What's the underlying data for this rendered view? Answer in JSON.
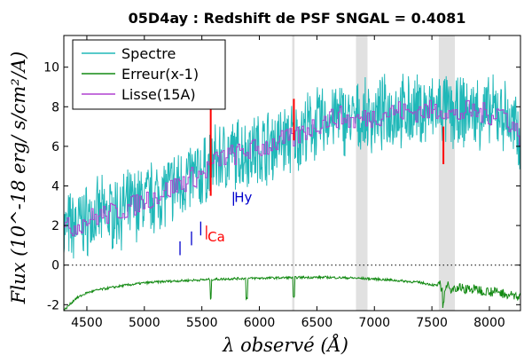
{
  "chart_data": {
    "type": "line",
    "title": "05D4ay : Redshift de PSF SNGAL = 0.4081",
    "xlabel": "λ observé (Å)",
    "ylabel": "Flux (10^-18 erg/ s/cm²/A)",
    "xlim": [
      4300,
      8270
    ],
    "ylim": [
      -2.3,
      11.6
    ],
    "xticks": [
      4500,
      5000,
      5500,
      6000,
      6500,
      7000,
      7500,
      8000
    ],
    "yticks": [
      -2,
      0,
      2,
      4,
      6,
      8,
      10
    ],
    "legend": {
      "placement": "top-left",
      "entries": [
        "Spectre",
        "Erreur(x-1)",
        "Lisse(15A)"
      ]
    },
    "colors": {
      "spectre": "#20b8b8",
      "erreur": "#138a13",
      "lisse": "#b040d0",
      "mask": "#c8c8c8",
      "sky": "#ff0000",
      "lines_blue": "#0000cc",
      "lines_red": "#ff0000"
    },
    "series": [
      {
        "name": "Spectre",
        "x": [
          4300,
          4400,
          4500,
          4600,
          4700,
          4800,
          4900,
          5000,
          5100,
          5200,
          5300,
          5400,
          5500,
          5600,
          5700,
          5800,
          5900,
          6000,
          6100,
          6200,
          6300,
          6400,
          6500,
          6600,
          6700,
          6800,
          6900,
          7000,
          7100,
          7200,
          7300,
          7400,
          7500,
          7600,
          7700,
          7800,
          7900,
          8000,
          8100,
          8200,
          8270
        ],
        "y": [
          1.8,
          2.0,
          2.3,
          2.5,
          2.6,
          2.8,
          3.0,
          3.3,
          3.5,
          3.8,
          4.1,
          4.4,
          4.6,
          5.2,
          5.5,
          5.6,
          5.8,
          5.9,
          6.1,
          6.3,
          6.4,
          6.8,
          7.1,
          7.4,
          7.5,
          7.3,
          7.4,
          7.5,
          7.7,
          7.8,
          7.7,
          7.8,
          7.8,
          7.9,
          7.5,
          7.8,
          7.7,
          7.6,
          7.8,
          7.0,
          6.5
        ],
        "noise": 1.6
      },
      {
        "name": "Erreur(x-1)",
        "x": [
          4300,
          4400,
          4500,
          4600,
          4800,
          5000,
          5200,
          5400,
          5600,
          5800,
          6000,
          6200,
          6400,
          6600,
          6800,
          7000,
          7200,
          7400,
          7600,
          7800,
          8000,
          8270
        ],
        "y": [
          -2.3,
          -1.7,
          -1.4,
          -1.25,
          -1.05,
          -0.9,
          -0.82,
          -0.77,
          -0.72,
          -0.68,
          -0.66,
          -0.64,
          -0.62,
          -0.62,
          -0.65,
          -0.7,
          -0.78,
          -0.88,
          -1.1,
          -1.2,
          -1.3,
          -1.6
        ]
      },
      {
        "name": "Lisse(15A)",
        "x": [
          4300,
          4400,
          4500,
          4600,
          4700,
          4800,
          4900,
          5000,
          5100,
          5200,
          5300,
          5400,
          5500,
          5600,
          5700,
          5800,
          5900,
          6000,
          6100,
          6200,
          6300,
          6400,
          6500,
          6600,
          6700,
          6800,
          6900,
          7000,
          7100,
          7200,
          7300,
          7400,
          7500,
          7600,
          7700,
          7800,
          7900,
          8000,
          8100,
          8200,
          8270
        ],
        "y": [
          1.8,
          2.0,
          2.3,
          2.5,
          2.6,
          2.8,
          3.0,
          3.3,
          3.5,
          3.8,
          4.1,
          4.4,
          4.6,
          5.2,
          5.5,
          5.6,
          5.8,
          5.9,
          6.1,
          6.3,
          6.4,
          6.8,
          7.1,
          7.4,
          7.5,
          7.3,
          7.4,
          7.5,
          7.7,
          7.8,
          7.7,
          7.8,
          7.8,
          7.9,
          7.5,
          7.8,
          7.7,
          7.6,
          7.8,
          7.0,
          6.5
        ],
        "noise": 0.55
      }
    ],
    "masked_regions": [
      [
        6285,
        6305
      ],
      [
        6840,
        6940
      ],
      [
        7560,
        7700
      ]
    ],
    "sky_lines": [
      {
        "x": 5577,
        "y0": 3.5,
        "y1": 8.3
      },
      {
        "x": 6300,
        "y0": 6.3,
        "y1": 8.4
      },
      {
        "x": 7600,
        "y0": 5.1,
        "y1": 7.0
      }
    ],
    "error_spikes": [
      5577,
      5890,
      6300,
      7600
    ],
    "zero_line": 0,
    "line_markers": [
      {
        "x": 5310,
        "y0": 0.5,
        "y1": 1.2,
        "color": "blue"
      },
      {
        "x": 5410,
        "y0": 1.0,
        "y1": 1.7,
        "color": "blue"
      },
      {
        "x": 5490,
        "y0": 1.5,
        "y1": 2.2,
        "color": "blue"
      },
      {
        "x": 5540,
        "y0": 1.3,
        "y1": 2.0,
        "color": "red"
      },
      {
        "x": 5775,
        "y0": 3.0,
        "y1": 3.7,
        "color": "blue"
      }
    ],
    "annotations": [
      {
        "text": "Ca",
        "x": 5550,
        "y": 1.2,
        "color": "red"
      },
      {
        "text": "Hy",
        "x": 5782,
        "y": 3.2,
        "color": "blue"
      }
    ]
  }
}
